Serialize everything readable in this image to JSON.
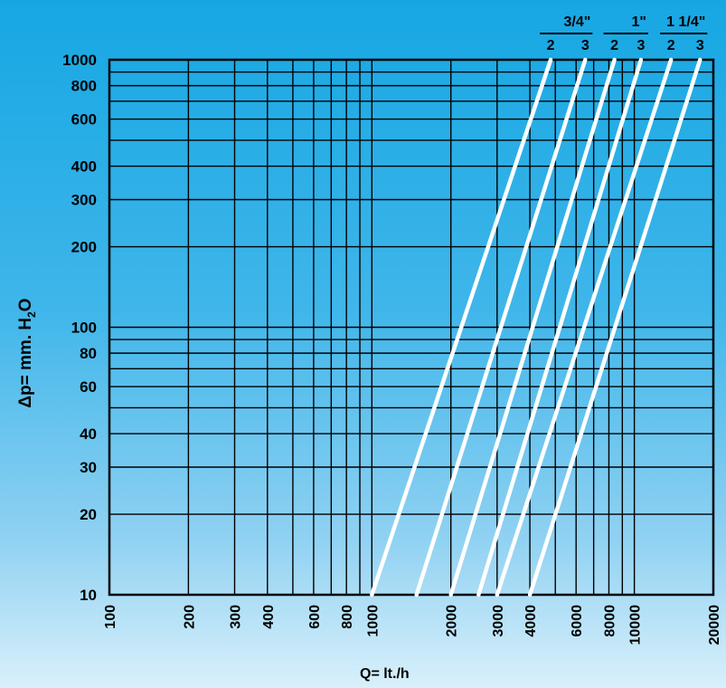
{
  "chart_data": {
    "type": "line",
    "title": "",
    "xlabel": "Q= lt./h",
    "ylabel": {
      "prefix": "Δp= mm. H",
      "sub": "2",
      "suffix": "O"
    },
    "x_scale": "log",
    "y_scale": "log",
    "xlim": [
      100,
      20000
    ],
    "ylim": [
      10,
      1000
    ],
    "grid": true,
    "x_ticks": [
      "100",
      "200",
      "300",
      "400",
      "600",
      "800",
      "1000",
      "2000",
      "3000",
      "4000",
      "6000",
      "8000",
      "10000",
      "20000"
    ],
    "y_ticks": [
      "10",
      "20",
      "30",
      "40",
      "60",
      "80",
      "100",
      "200",
      "300",
      "400",
      "600",
      "800",
      "1000"
    ],
    "series_legend": {
      "groups": [
        {
          "size": "3/4\"",
          "members": [
            "2",
            "3"
          ]
        },
        {
          "size": "1\"",
          "members": [
            "2",
            "3"
          ]
        },
        {
          "size": "1 1/4\"",
          "members": [
            "2",
            "3"
          ]
        }
      ]
    },
    "series": [
      {
        "name": "3/4\" 2",
        "x": [
          1000,
          4800
        ],
        "y": [
          10,
          1000
        ]
      },
      {
        "name": "3/4\" 3",
        "x": [
          1480,
          6500
        ],
        "y": [
          10,
          1000
        ]
      },
      {
        "name": "1\" 2",
        "x": [
          2000,
          8400
        ],
        "y": [
          10,
          1000
        ]
      },
      {
        "name": "1\" 3",
        "x": [
          2550,
          10600
        ],
        "y": [
          10,
          1000
        ]
      },
      {
        "name": "1 1/4\" 2",
        "x": [
          3000,
          13800
        ],
        "y": [
          10,
          1000
        ]
      },
      {
        "name": "1 1/4\" 3",
        "x": [
          4000,
          17800
        ],
        "y": [
          10,
          1000
        ]
      }
    ]
  }
}
